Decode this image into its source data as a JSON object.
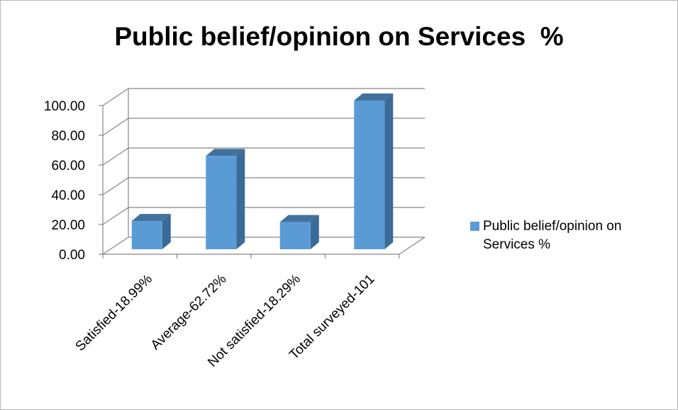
{
  "chart_data": {
    "type": "bar",
    "title": "Public belief/opinion on Services  %",
    "categories": [
      "Satisfied-18.99%",
      "Average-62.72%",
      "Not satisfied-18.29%",
      "Total surveyed-101"
    ],
    "series": [
      {
        "name": "Public belief/opinion on Services  %",
        "values": [
          18.99,
          62.72,
          18.29,
          101
        ]
      }
    ],
    "yticks": [
      "0.00",
      "20.00",
      "40.00",
      "60.00",
      "80.00",
      "100.00"
    ],
    "ylim": [
      0,
      100
    ],
    "grid": true,
    "style": "3d-column",
    "legend": {
      "position": "right"
    },
    "colors": {
      "bar_front": "#5b9bd5",
      "bar_side": "#3a6a97",
      "bar_top": "#41719c",
      "grid": "#878787"
    }
  }
}
